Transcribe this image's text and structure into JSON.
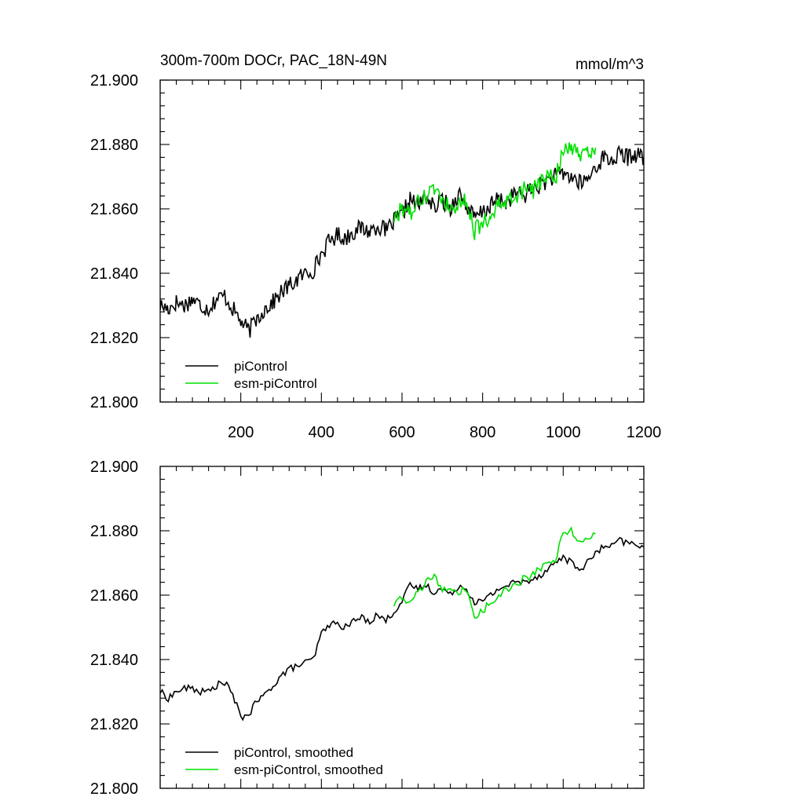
{
  "figure": {
    "title_left": "300m-700m DOCr, PAC_18N-49N",
    "title_right": "mmol/m^3"
  },
  "colors": {
    "piControl": "#000000",
    "esm_piControl": "#00e000"
  },
  "chart_data": [
    {
      "type": "line",
      "title": "300m-700m DOCr, PAC_18N-49N",
      "units": "mmol/m^3",
      "xlim": [
        0,
        1200
      ],
      "ylim": [
        21.8,
        21.9
      ],
      "xticks": [
        200,
        400,
        600,
        800,
        1000,
        1200
      ],
      "xtick_labels": [
        "200",
        "400",
        "600",
        "800",
        "1000",
        "1200"
      ],
      "yticks": [
        21.8,
        21.82,
        21.84,
        21.86,
        21.88,
        21.9
      ],
      "ytick_labels": [
        "21.800",
        "21.820",
        "21.840",
        "21.860",
        "21.880",
        "21.900"
      ],
      "legend_position": "bottom-left",
      "series": [
        {
          "name": "piControl",
          "color": "#000000",
          "x": [
            0,
            20,
            40,
            60,
            80,
            100,
            120,
            140,
            160,
            180,
            200,
            220,
            240,
            260,
            280,
            300,
            320,
            340,
            360,
            380,
            400,
            420,
            440,
            460,
            480,
            500,
            520,
            540,
            560,
            580,
            600,
            620,
            640,
            660,
            680,
            700,
            720,
            740,
            760,
            780,
            800,
            820,
            840,
            860,
            880,
            900,
            920,
            940,
            960,
            980,
            1000,
            1020,
            1040,
            1060,
            1080,
            1100,
            1120,
            1140,
            1160,
            1180,
            1200
          ],
          "y": [
            21.83,
            21.829,
            21.831,
            21.83,
            21.832,
            21.83,
            21.829,
            21.832,
            21.833,
            21.829,
            21.825,
            21.822,
            21.826,
            21.829,
            21.831,
            21.834,
            21.836,
            21.838,
            21.84,
            21.841,
            21.846,
            21.85,
            21.852,
            21.851,
            21.853,
            21.854,
            21.853,
            21.855,
            21.853,
            21.856,
            21.858,
            21.863,
            21.861,
            21.864,
            21.86,
            21.863,
            21.86,
            21.865,
            21.861,
            21.857,
            21.859,
            21.861,
            21.863,
            21.862,
            21.865,
            21.864,
            21.866,
            21.867,
            21.869,
            21.87,
            21.871,
            21.87,
            21.868,
            21.869,
            21.873,
            21.876,
            21.875,
            21.877,
            21.876,
            21.877,
            21.876
          ]
        },
        {
          "name": "esm-piControl",
          "color": "#00e000",
          "x": [
            580,
            600,
            620,
            640,
            660,
            680,
            700,
            720,
            740,
            760,
            780,
            800,
            820,
            840,
            860,
            880,
            900,
            920,
            940,
            960,
            980,
            1000,
            1020,
            1040,
            1060,
            1080
          ],
          "y": [
            21.857,
            21.86,
            21.858,
            21.862,
            21.864,
            21.866,
            21.862,
            21.861,
            21.86,
            21.863,
            21.853,
            21.856,
            21.858,
            21.861,
            21.862,
            21.863,
            21.866,
            21.865,
            21.868,
            21.87,
            21.869,
            21.878,
            21.88,
            21.876,
            21.878,
            21.879
          ]
        }
      ]
    },
    {
      "type": "line",
      "xlim": [
        0,
        1200
      ],
      "ylim": [
        21.8,
        21.9
      ],
      "xticks": [
        200,
        400,
        600,
        800,
        1000,
        1200
      ],
      "yticks": [
        21.8,
        21.82,
        21.84,
        21.86,
        21.88,
        21.9
      ],
      "ytick_labels": [
        "21.800",
        "21.820",
        "21.840",
        "21.860",
        "21.880",
        "21.900"
      ],
      "legend_position": "bottom-left",
      "series": [
        {
          "name": "piControl, smoothed",
          "color": "#000000",
          "x": [
            0,
            20,
            40,
            60,
            80,
            100,
            120,
            140,
            160,
            180,
            200,
            220,
            240,
            260,
            280,
            300,
            320,
            340,
            360,
            380,
            400,
            420,
            440,
            460,
            480,
            500,
            520,
            540,
            560,
            580,
            600,
            620,
            640,
            660,
            680,
            700,
            720,
            740,
            760,
            780,
            800,
            820,
            840,
            860,
            880,
            900,
            920,
            940,
            960,
            980,
            1000,
            1020,
            1040,
            1060,
            1080,
            1100,
            1120,
            1140,
            1160,
            1180,
            1200
          ],
          "y": [
            21.83,
            21.828,
            21.83,
            21.831,
            21.831,
            21.83,
            21.83,
            21.832,
            21.833,
            21.829,
            21.822,
            21.823,
            21.827,
            21.829,
            21.832,
            21.835,
            21.837,
            21.838,
            21.839,
            21.84,
            21.848,
            21.851,
            21.851,
            21.85,
            21.852,
            21.853,
            21.852,
            21.854,
            21.852,
            21.855,
            21.858,
            21.863,
            21.862,
            21.863,
            21.861,
            21.862,
            21.86,
            21.863,
            21.862,
            21.858,
            21.858,
            21.86,
            21.862,
            21.863,
            21.864,
            21.864,
            21.865,
            21.866,
            21.868,
            21.87,
            21.872,
            21.87,
            21.868,
            21.87,
            21.873,
            21.875,
            21.875,
            21.877,
            21.876,
            21.876,
            21.875
          ]
        },
        {
          "name": "esm-piControl, smoothed",
          "color": "#00e000",
          "x": [
            580,
            600,
            620,
            640,
            660,
            680,
            700,
            720,
            740,
            760,
            780,
            800,
            820,
            840,
            860,
            880,
            900,
            920,
            940,
            960,
            980,
            1000,
            1020,
            1040,
            1060,
            1080
          ],
          "y": [
            21.857,
            21.859,
            21.858,
            21.861,
            21.864,
            21.866,
            21.862,
            21.861,
            21.861,
            21.862,
            21.853,
            21.855,
            21.858,
            21.86,
            21.862,
            21.863,
            21.865,
            21.866,
            21.868,
            21.87,
            21.871,
            21.879,
            21.88,
            21.876,
            21.877,
            21.879
          ]
        }
      ]
    }
  ]
}
